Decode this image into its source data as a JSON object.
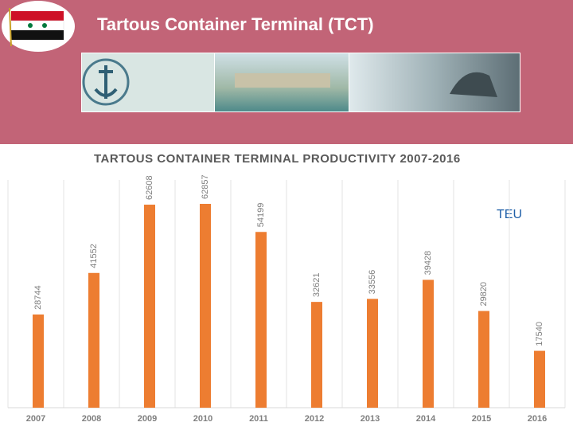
{
  "header": {
    "title": "Tartous Container Terminal (TCT)"
  },
  "chart_data": {
    "type": "bar",
    "title": "TARTOUS CONTAINER TERMINAL PRODUCTIVITY 2007-2016",
    "annotation": "TEU",
    "categories": [
      "2007",
      "2008",
      "2009",
      "2010",
      "2011",
      "2012",
      "2013",
      "2014",
      "2015",
      "2016"
    ],
    "values": [
      28744,
      41552,
      62608,
      62857,
      54199,
      32621,
      33556,
      39428,
      29820,
      17540
    ],
    "color": "#ed7d31",
    "grid": true
  }
}
